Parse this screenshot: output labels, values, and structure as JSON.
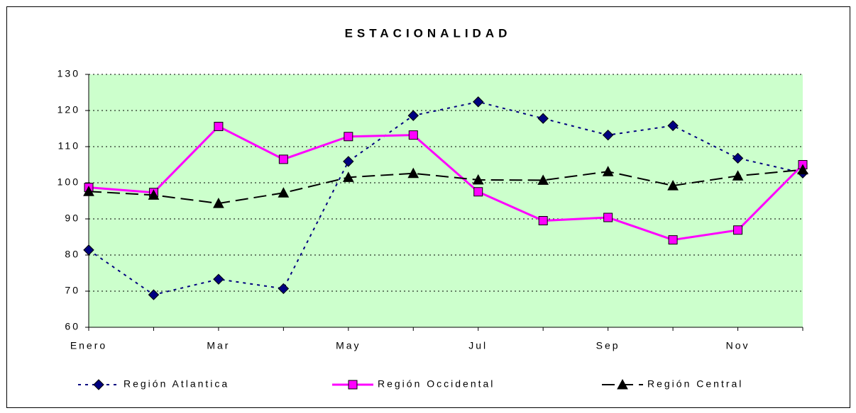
{
  "chart_data": {
    "type": "line",
    "title": "ESTACIONALIDAD",
    "categories": [
      "Enero",
      null,
      "Mar",
      null,
      "May",
      null,
      "Jul",
      null,
      "Sep",
      null,
      "Nov",
      null
    ],
    "series": [
      {
        "name": "Región Atlantica",
        "color": "#000080",
        "dash": "short",
        "marker": "diamond",
        "values": [
          81.4,
          69,
          73.3,
          70.7,
          105.9,
          118.6,
          122.4,
          117.8,
          113.2,
          115.8,
          106.8,
          102.7
        ]
      },
      {
        "name": "Región Occidental",
        "color": "#ff00ff",
        "dash": "solid",
        "marker": "square",
        "values": [
          98.7,
          97.3,
          115.6,
          106.5,
          112.8,
          113.2,
          97.5,
          89.5,
          90.4,
          84.2,
          86.9,
          105
        ]
      },
      {
        "name": "Región Central",
        "color": "#000000",
        "dash": "long",
        "marker": "triangle",
        "values": [
          97.6,
          96.6,
          94.3,
          97.2,
          101.5,
          102.6,
          100.8,
          100.7,
          103.1,
          99.2,
          101.9,
          103.6
        ]
      }
    ],
    "ylim": [
      60,
      130
    ],
    "yticks": [
      60,
      70,
      80,
      90,
      100,
      110,
      120,
      130
    ],
    "grid": true,
    "plot_background": "#ccffcc",
    "legend": "bottom"
  }
}
